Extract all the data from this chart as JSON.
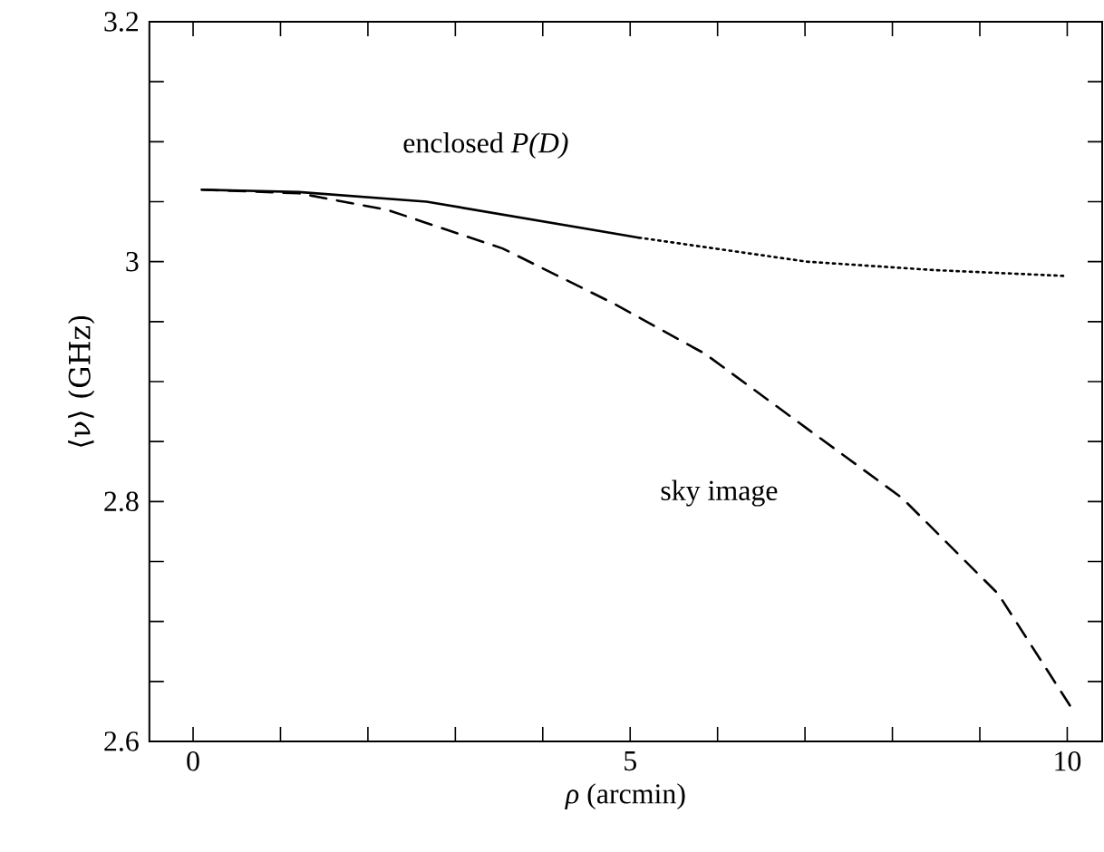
{
  "chart_data": {
    "type": "line",
    "xlabel": "*ρ* (arcmin)",
    "ylabel": "⟨ν⟩ (GHz)",
    "xlim": [
      -0.5,
      10.4
    ],
    "ylim": [
      2.6,
      3.2
    ],
    "xticks": [
      0,
      {
        "value": 1,
        "label": null
      },
      {
        "value": 2,
        "label": null
      },
      {
        "value": 3,
        "label": null
      },
      {
        "value": 4,
        "label": null
      },
      5,
      {
        "value": 6,
        "label": null
      },
      {
        "value": 7,
        "label": null
      },
      {
        "value": 8,
        "label": null
      },
      {
        "value": 9,
        "label": null
      },
      10
    ],
    "yticks": [
      2.6,
      {
        "value": 2.65,
        "label": null
      },
      {
        "value": 2.7,
        "label": null
      },
      {
        "value": 2.75,
        "label": null
      },
      2.8,
      {
        "value": 2.85,
        "label": null
      },
      {
        "value": 2.9,
        "label": null
      },
      {
        "value": 2.95,
        "label": null
      },
      3,
      {
        "value": 3.05,
        "label": null
      },
      {
        "value": 3.1,
        "label": null
      },
      {
        "value": 3.15,
        "label": null
      },
      3.2
    ],
    "marker": "none",
    "series": [
      {
        "color": "#000000",
        "line_style": "solid",
        "x": [
          0.1,
          1.21,
          2.67,
          5.1
        ],
        "values": [
          3.06,
          3.058,
          3.05,
          3.02
        ]
      },
      {
        "color": "#000000",
        "line_style": "dotted",
        "x": [
          5.1,
          7.02,
          8.47,
          10.0
        ],
        "values": [
          3.02,
          3.0,
          2.993,
          2.988
        ]
      },
      {
        "color": "#000000",
        "line_style": "dashed",
        "x": [
          0.1,
          1.21,
          2.23,
          3.54,
          4.84,
          5.86,
          7.02,
          8.11,
          9.21,
          10.03
        ],
        "values": [
          3.06,
          3.057,
          3.043,
          3.011,
          2.964,
          2.923,
          2.861,
          2.803,
          2.723,
          2.63
        ]
      }
    ],
    "annotations": [
      "enclosed *P(D)*",
      "sky image"
    ]
  }
}
